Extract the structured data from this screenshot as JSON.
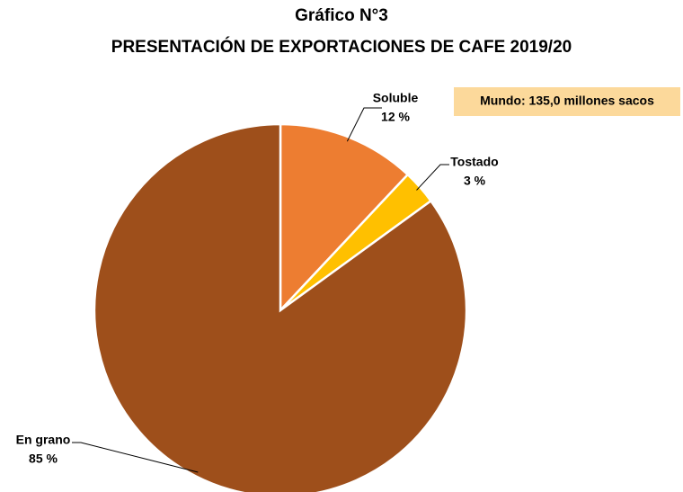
{
  "chart_data": {
    "type": "pie",
    "title": "Gráfico N°3",
    "subtitle": "PRESENTACIÓN DE EXPORTACIONES DE CAFE 2019/20",
    "annotation": "Mundo: 135,0 millones sacos",
    "categories": [
      "Soluble",
      "Tostado",
      "En grano"
    ],
    "values": [
      12,
      3,
      85
    ],
    "value_labels": [
      "12 %",
      "3 %",
      "85 %"
    ],
    "colors": [
      "#ed7d31",
      "#ffc000",
      "#9e4f1b"
    ]
  }
}
